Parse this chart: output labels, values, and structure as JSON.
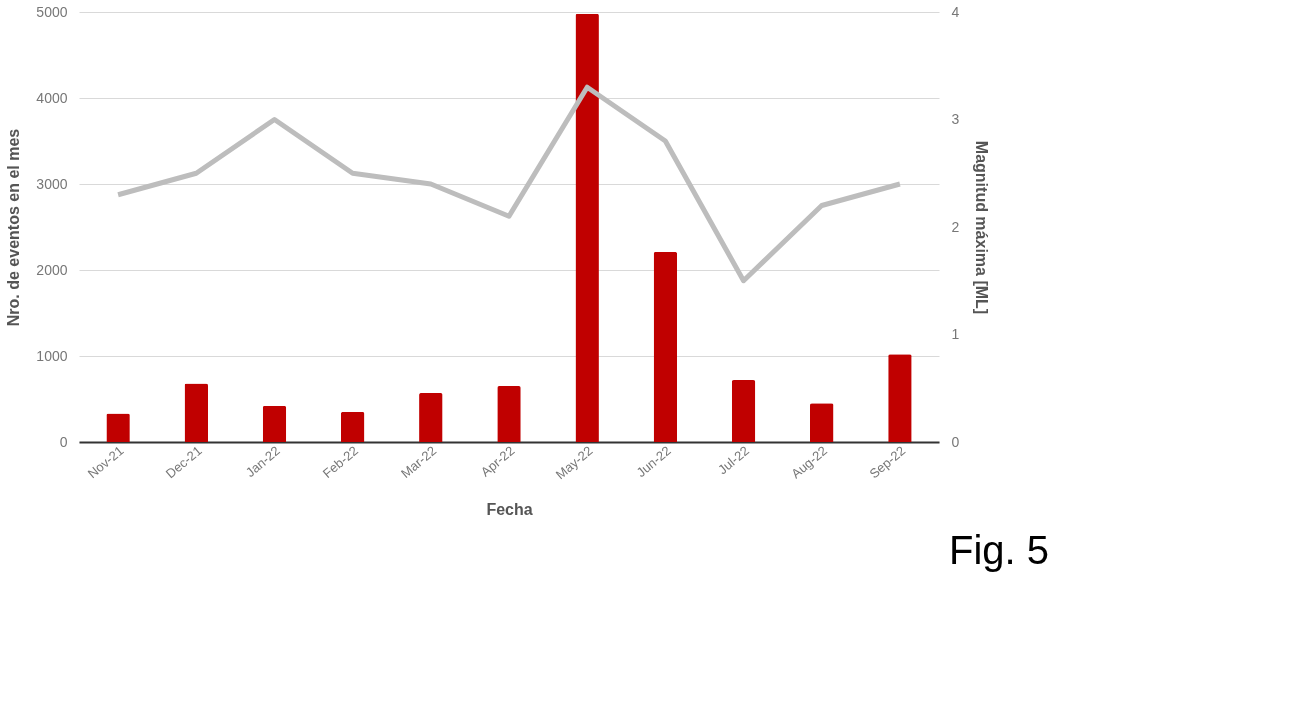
{
  "chart_data": {
    "type": "bar",
    "xlabel": "Fecha",
    "ylabel": "Nro. de eventos en el mes",
    "y2label": "Magnitud máxima [ML]",
    "categories": [
      "Nov-21",
      "Dec-21",
      "Jan-22",
      "Feb-22",
      "Mar-22",
      "Apr-22",
      "May-22",
      "Jun-22",
      "Jul-22",
      "Aug-22",
      "Sep-22"
    ],
    "series": [
      {
        "color": "#c00000",
        "values": [
          330,
          680,
          420,
          350,
          570,
          650,
          4980,
          2210,
          720,
          450,
          1020
        ]
      },
      {
        "type": "line",
        "axis": "y2",
        "color": "#bdbdbd",
        "values": [
          2.3,
          2.5,
          3.0,
          2.5,
          2.4,
          2.1,
          3.3,
          2.8,
          1.5,
          2.2,
          2.4
        ]
      }
    ],
    "ylim": [
      0,
      5000
    ],
    "yticks": [
      0,
      1000,
      2000,
      3000,
      4000,
      5000
    ],
    "y2lim": [
      0,
      4
    ],
    "y2ticks": [
      0,
      1,
      2,
      3,
      4
    ],
    "grid": "y",
    "annotations": [
      "Fig. 5"
    ]
  }
}
